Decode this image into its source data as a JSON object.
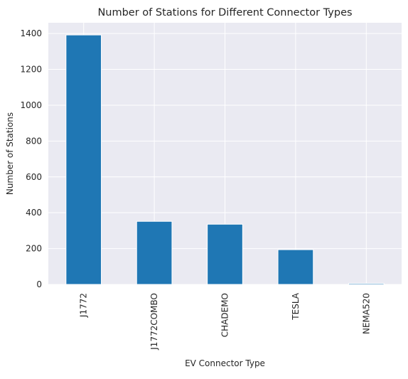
{
  "chart_data": {
    "type": "bar",
    "title": "Number of Stations for Different Connector Types",
    "xlabel": "EV Connector Type",
    "ylabel": "Number of Stations",
    "categories": [
      "J1772",
      "J1772COMBO",
      "CHADEMO",
      "TESLA",
      "NEMA520"
    ],
    "values": [
      1392,
      352,
      336,
      194,
      6
    ],
    "ylim": [
      0,
      1460
    ],
    "yticks": [
      0,
      200,
      400,
      600,
      800,
      1000,
      1200,
      1400
    ],
    "grid": true,
    "legend": "none",
    "colors": {
      "bar": "#1f77b4",
      "plot_background": "#eaeaf2",
      "grid": "#ffffff",
      "text": "#262626"
    }
  }
}
